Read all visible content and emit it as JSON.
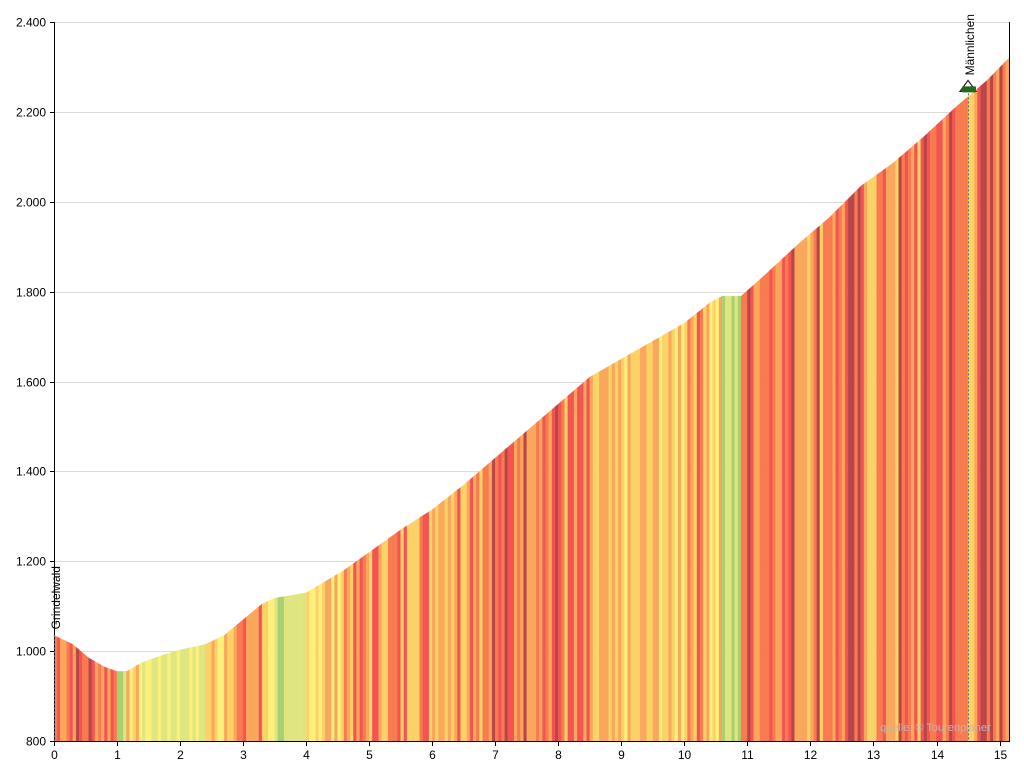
{
  "chart_data": {
    "type": "area",
    "title": "",
    "xlabel": "",
    "ylabel": "",
    "xlim": [
      0,
      15.15
    ],
    "ylim": [
      800,
      2400
    ],
    "x_ticks": [
      0,
      1,
      2,
      3,
      4,
      5,
      6,
      7,
      8,
      9,
      10,
      11,
      12,
      13,
      14,
      15
    ],
    "x_tick_labels": [
      "0",
      "1",
      "2",
      "3",
      "4",
      "5",
      "6",
      "7",
      "8",
      "9",
      "10",
      "11",
      "12",
      "13",
      "14",
      "15"
    ],
    "y_ticks": [
      800,
      1000,
      1200,
      1400,
      1600,
      1800,
      2000,
      2200,
      2400
    ],
    "y_tick_labels": [
      "800",
      "1.000",
      "1.200",
      "1.400",
      "1.600",
      "1.800",
      "2.000",
      "2.200",
      "2.400"
    ],
    "grid": "horizontal",
    "profile": {
      "x": [
        0,
        0.3,
        0.55,
        0.8,
        1.0,
        1.15,
        1.4,
        1.7,
        2.0,
        2.4,
        2.7,
        3.0,
        3.3,
        3.5,
        3.8,
        4.0,
        4.3,
        4.6,
        5.0,
        5.5,
        6.0,
        6.5,
        7.0,
        7.5,
        8.0,
        8.5,
        9.0,
        9.5,
        10.0,
        10.4,
        10.6,
        10.9,
        11.3,
        11.8,
        12.3,
        12.8,
        13.3,
        13.8,
        14.3,
        14.8,
        15.15
      ],
      "y": [
        1035,
        1015,
        985,
        965,
        955,
        955,
        975,
        990,
        1003,
        1015,
        1035,
        1070,
        1105,
        1118,
        1125,
        1130,
        1155,
        1180,
        1220,
        1270,
        1315,
        1370,
        1430,
        1490,
        1550,
        1610,
        1650,
        1690,
        1730,
        1775,
        1790,
        1790,
        1840,
        1905,
        1965,
        2035,
        2085,
        2145,
        2210,
        2270,
        2320
      ]
    },
    "slope_colors": [
      "#a8d070",
      "#dfe680",
      "#fdf07a",
      "#fcd267",
      "#faa75c",
      "#f87b4f",
      "#f35452",
      "#b94546"
    ],
    "waypoints": [
      {
        "name": "Grindelwald",
        "x": 0,
        "y": 1035
      },
      {
        "name": "Männlichen",
        "x": 14.5,
        "y": 2250
      }
    ],
    "credit": "quelle: © Tourenplaner"
  }
}
